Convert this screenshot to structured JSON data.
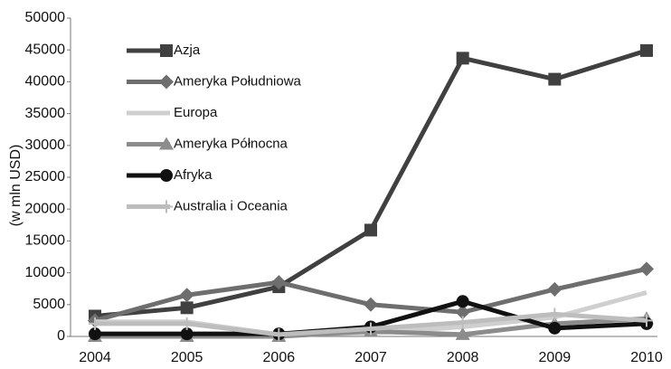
{
  "chart_data": {
    "type": "line",
    "y_label": "(w mln USD)",
    "categories": [
      "2004",
      "2005",
      "2006",
      "2007",
      "2008",
      "2009",
      "2010"
    ],
    "series": [
      {
        "name": "Azja",
        "color": "#404040",
        "marker": "square",
        "values": [
          3200,
          4500,
          7800,
          16700,
          43700,
          40400,
          44900
        ]
      },
      {
        "name": "Ameryka Południowa",
        "color": "#6e6e6e",
        "marker": "diamond",
        "values": [
          2500,
          6500,
          8500,
          5000,
          3800,
          7400,
          10600
        ]
      },
      {
        "name": "Europa",
        "color": "#cfcfcf",
        "marker": "none",
        "values": [
          2300,
          2300,
          300,
          500,
          1500,
          3000,
          6900
        ]
      },
      {
        "name": "Ameryka Północna",
        "color": "#8c8c8c",
        "marker": "triangle",
        "values": [
          0,
          0,
          0,
          800,
          300,
          2000,
          2800
        ]
      },
      {
        "name": "Afryka",
        "color": "#111111",
        "marker": "circle",
        "values": [
          400,
          400,
          400,
          1500,
          5500,
          1300,
          2000
        ]
      },
      {
        "name": "Australia i Oceania",
        "color": "#bdbdbd",
        "marker": "plus",
        "values": [
          2000,
          2000,
          300,
          1200,
          2200,
          3500,
          2500
        ]
      }
    ],
    "ylim": [
      0,
      50000
    ],
    "yticks": [
      0,
      5000,
      10000,
      15000,
      20000,
      25000,
      30000,
      35000,
      40000,
      45000,
      50000
    ],
    "grid": false,
    "legend": "upper left"
  }
}
